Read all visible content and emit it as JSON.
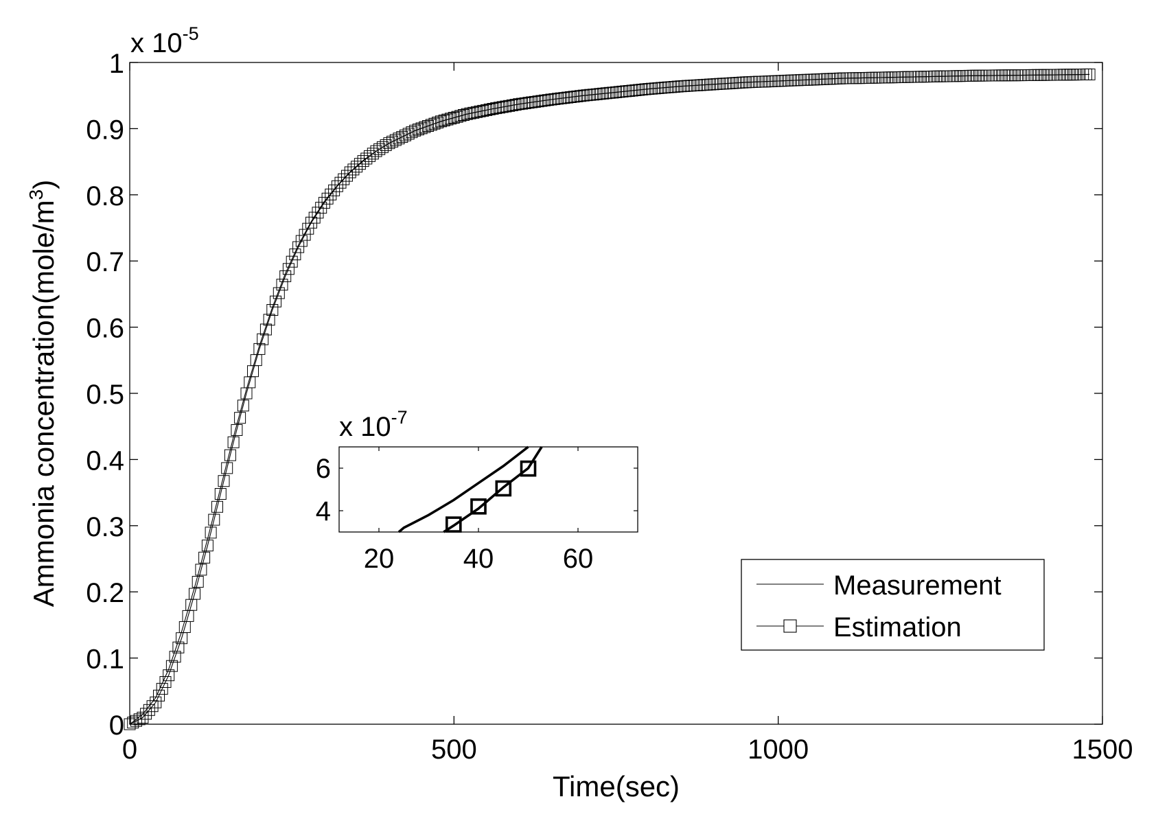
{
  "chart_data": [
    {
      "type": "line",
      "role": "main",
      "xlabel": "Time(sec)",
      "ylabel": "Ammonia concentration(mole/m",
      "ylabel_superscript": "3",
      "ylabel_suffix": ")",
      "xlim": [
        0,
        1500
      ],
      "ylim": [
        0,
        1
      ],
      "x_ticks": [
        "0",
        "500",
        "1000",
        "1500"
      ],
      "x_tick_values": [
        0,
        500,
        1000,
        1500
      ],
      "y_ticks": [
        "0",
        "0.1",
        "0.2",
        "0.3",
        "0.4",
        "0.5",
        "0.6",
        "0.7",
        "0.8",
        "0.9",
        "1"
      ],
      "y_tick_values": [
        0,
        0.1,
        0.2,
        0.3,
        0.4,
        0.5,
        0.6,
        0.7,
        0.8,
        0.9,
        1.0
      ],
      "exponent_base": "x 10",
      "exponent_power": "-5",
      "legend": {
        "placement": "bottom-right",
        "entries": [
          {
            "label": "Measurement",
            "marker": "none"
          },
          {
            "label": "Estimation",
            "marker": "square"
          }
        ]
      },
      "series": [
        {
          "name": "Measurement",
          "x": [
            0,
            20,
            40,
            60,
            80,
            100,
            120,
            140,
            160,
            180,
            200,
            220,
            240,
            260,
            280,
            300,
            320,
            340,
            360,
            380,
            400,
            440,
            480,
            520,
            560,
            600,
            650,
            700,
            750,
            800,
            850,
            900,
            950,
            1000,
            1100,
            1200,
            1300,
            1400,
            1480
          ],
          "values": [
            0.0,
            0.015,
            0.04,
            0.083,
            0.14,
            0.207,
            0.28,
            0.357,
            0.434,
            0.506,
            0.572,
            0.63,
            0.681,
            0.724,
            0.76,
            0.79,
            0.814,
            0.835,
            0.852,
            0.866,
            0.878,
            0.897,
            0.911,
            0.922,
            0.93,
            0.937,
            0.944,
            0.95,
            0.955,
            0.96,
            0.964,
            0.967,
            0.97,
            0.972,
            0.976,
            0.978,
            0.98,
            0.981,
            0.982
          ]
        },
        {
          "name": "Estimation",
          "x": [
            0,
            20,
            40,
            60,
            80,
            100,
            120,
            140,
            160,
            180,
            200,
            220,
            240,
            260,
            280,
            300,
            320,
            340,
            360,
            380,
            400,
            440,
            480,
            520,
            560,
            600,
            650,
            700,
            750,
            800,
            850,
            900,
            950,
            1000,
            1100,
            1200,
            1300,
            1400,
            1480
          ],
          "values": [
            0.0,
            0.01,
            0.033,
            0.074,
            0.13,
            0.197,
            0.27,
            0.348,
            0.426,
            0.5,
            0.567,
            0.626,
            0.677,
            0.721,
            0.758,
            0.788,
            0.813,
            0.834,
            0.851,
            0.866,
            0.878,
            0.897,
            0.911,
            0.922,
            0.93,
            0.937,
            0.944,
            0.95,
            0.955,
            0.96,
            0.964,
            0.967,
            0.97,
            0.972,
            0.976,
            0.978,
            0.98,
            0.981,
            0.982
          ]
        }
      ]
    },
    {
      "type": "line",
      "role": "inset",
      "xlim": [
        12,
        72
      ],
      "ylim": [
        3.0,
        7.0
      ],
      "x_ticks": [
        "20",
        "40",
        "60"
      ],
      "x_tick_values": [
        20,
        40,
        60
      ],
      "y_ticks": [
        "4",
        "6"
      ],
      "y_tick_values": [
        4,
        6
      ],
      "exponent_base": "x 10",
      "exponent_power": "-7",
      "series": [
        {
          "name": "Measurement",
          "x": [
            24,
            25,
            30,
            35,
            40,
            45,
            50
          ],
          "values": [
            3.0,
            3.2,
            3.8,
            4.5,
            5.3,
            6.1,
            7.0
          ]
        },
        {
          "name": "Estimation",
          "x": [
            33,
            35,
            40,
            45,
            50,
            52.7
          ],
          "values": [
            3.0,
            3.3,
            4.1,
            5.1,
            6.0,
            7.0
          ]
        }
      ],
      "estimation_markers": {
        "x": [
          35,
          40,
          45,
          50
        ],
        "values": [
          3.35,
          4.2,
          5.05,
          5.98
        ]
      }
    }
  ]
}
